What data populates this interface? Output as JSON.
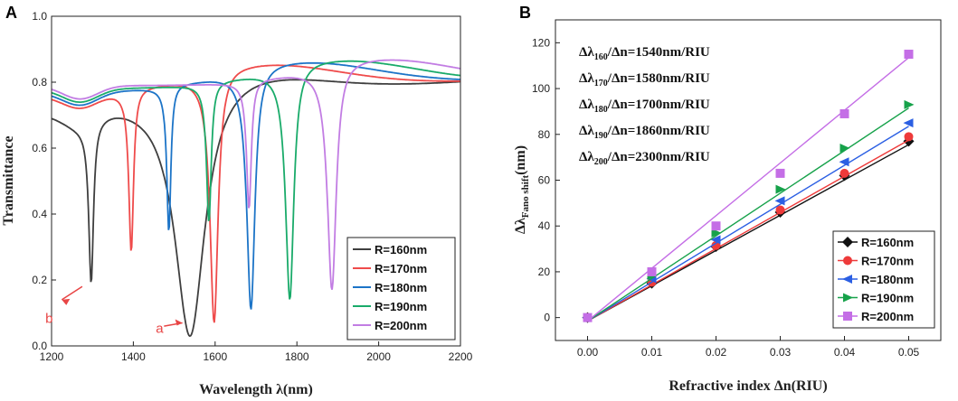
{
  "chart_data": [
    {
      "panel_label": "A",
      "type": "line",
      "xlabel": "Wavelength λ(nm)",
      "ylabel": "Transmittance",
      "xlim": [
        1200,
        2200
      ],
      "ylim": [
        0.0,
        1.0
      ],
      "xticks": [
        "1200",
        "1400",
        "1600",
        "1800",
        "2000",
        "2200"
      ],
      "yticks": [
        "0.0",
        "0.2",
        "0.4",
        "0.6",
        "0.8",
        "1.0"
      ],
      "legend_position": "bottom-right",
      "series": [
        {
          "name": "R=160nm",
          "color": "#3f3f3f",
          "dips": [
            {
              "center": 1297,
              "min": 0.22,
              "width": 7
            },
            {
              "center": 1540,
              "min": 0.03,
              "width": 45
            }
          ],
          "baseline_start": 0.72,
          "baseline_end": 0.8
        },
        {
          "name": "R=170nm",
          "color": "#ef4b4b",
          "dips": [
            {
              "center": 1395,
              "min": 0.29,
              "width": 7
            },
            {
              "center": 1598,
              "min": 0.07,
              "width": 12
            }
          ],
          "baseline_start": 0.76,
          "baseline_end": 0.8
        },
        {
          "name": "R=180nm",
          "color": "#1c74c7",
          "dips": [
            {
              "center": 1487,
              "min": 0.35,
              "width": 6
            },
            {
              "center": 1688,
              "min": 0.11,
              "width": 12
            }
          ],
          "baseline_start": 0.77,
          "baseline_end": 0.8
        },
        {
          "name": "R=190nm",
          "color": "#1aab6a",
          "dips": [
            {
              "center": 1585,
              "min": 0.38,
              "width": 7
            },
            {
              "center": 1783,
              "min": 0.14,
              "width": 12
            }
          ],
          "baseline_start": 0.78,
          "baseline_end": 0.8
        },
        {
          "name": "R=200nm",
          "color": "#c27de3",
          "dips": [
            {
              "center": 1683,
              "min": 0.42,
              "width": 7
            },
            {
              "center": 1886,
              "min": 0.17,
              "width": 13
            }
          ],
          "baseline_start": 0.79,
          "baseline_end": 0.8
        }
      ],
      "annotations": [
        {
          "text": "a",
          "color": "#e84545",
          "x": 1455,
          "y": 0.04
        },
        {
          "text": "b",
          "color": "#e84545",
          "x": 1240,
          "y": 0.18
        }
      ]
    },
    {
      "panel_label": "B",
      "type": "scatter",
      "xlabel": "Refractive index Δn(RIU)",
      "ylabel": "ΔλFano shift(nm)",
      "xlim": [
        -0.005,
        0.055
      ],
      "ylim": [
        -10,
        130
      ],
      "xticks": [
        "0.00",
        "0.01",
        "0.02",
        "0.03",
        "0.04",
        "0.05"
      ],
      "yticks": [
        "0",
        "20",
        "40",
        "60",
        "80",
        "100",
        "120"
      ],
      "x": [
        0.0,
        0.01,
        0.02,
        0.03,
        0.04,
        0.05
      ],
      "legend_position": "bottom-right",
      "series": [
        {
          "name": "R=160nm",
          "color": "#111111",
          "marker": "diamond",
          "values": [
            0,
            15,
            31,
            46,
            62,
            77
          ],
          "fit_slope": 1540
        },
        {
          "name": "R=170nm",
          "color": "#ee3a3a",
          "marker": "circle",
          "values": [
            0,
            15.5,
            31.5,
            47,
            63,
            79
          ],
          "fit_slope": 1580
        },
        {
          "name": "R=180nm",
          "color": "#2b5fe3",
          "marker": "triangle-left",
          "values": [
            0,
            17,
            34,
            51,
            68,
            85
          ],
          "fit_slope": 1700
        },
        {
          "name": "R=190nm",
          "color": "#16a24a",
          "marker": "triangle-right",
          "values": [
            0,
            18.5,
            37,
            56,
            74,
            93
          ],
          "fit_slope": 1860
        },
        {
          "name": "R=200nm",
          "color": "#c46ee6",
          "marker": "square",
          "values": [
            0,
            20,
            40,
            63,
            89,
            115
          ],
          "fit_slope": 2300
        }
      ],
      "annotations": [
        {
          "prefix": "Δλ",
          "sub": "160",
          "rest": "/Δn=1540nm/RIU"
        },
        {
          "prefix": "Δλ",
          "sub": "170",
          "rest": "/Δn=1580nm/RIU"
        },
        {
          "prefix": "Δλ",
          "sub": "180",
          "rest": "/Δn=1700nm/RIU"
        },
        {
          "prefix": "Δλ",
          "sub": "190",
          "rest": "/Δn=1860nm/RIU"
        },
        {
          "prefix": "Δλ",
          "sub": "200",
          "rest": "/Δn=2300nm/RIU"
        }
      ]
    }
  ]
}
